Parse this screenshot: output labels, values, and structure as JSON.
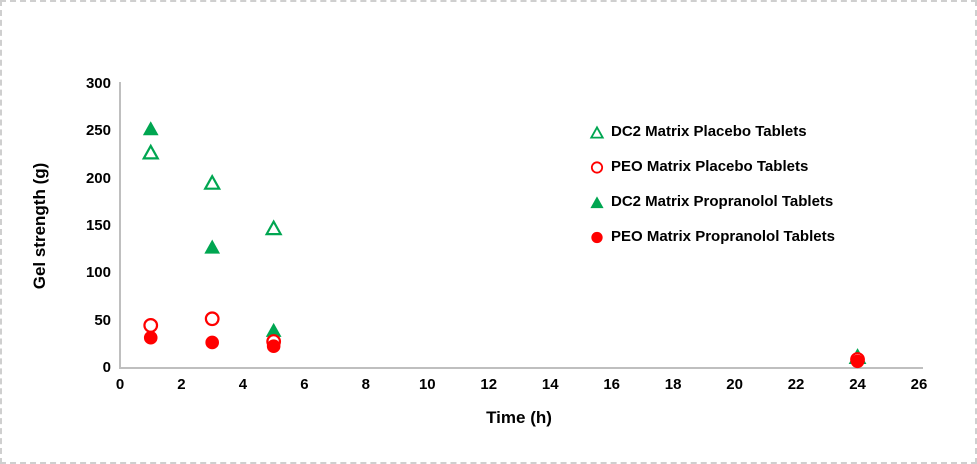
{
  "figure": {
    "background": "#ffffff",
    "border_color": "#cfcfcf"
  },
  "chart_data": {
    "type": "scatter",
    "title": "",
    "xlabel": "Time (h)",
    "ylabel": "Gel strength (g)",
    "xlim": [
      0,
      26
    ],
    "ylim": [
      0,
      300
    ],
    "x_ticks": [
      0,
      2,
      4,
      6,
      8,
      10,
      12,
      14,
      16,
      18,
      20,
      22,
      24,
      26
    ],
    "y_ticks": [
      0,
      50,
      100,
      150,
      200,
      250,
      300
    ],
    "grid": false,
    "axis_color": "#bfbfbf",
    "legend_position": "inside-right",
    "series": [
      {
        "name": "DC2 Matrix Placebo Tablets",
        "marker": "triangle",
        "fill": "open",
        "color": "#00a651",
        "points": [
          [
            1,
            228
          ],
          [
            3,
            196
          ],
          [
            5,
            148
          ],
          [
            24,
            12
          ]
        ]
      },
      {
        "name": "PEO Matrix Placebo Tablets",
        "marker": "circle",
        "fill": "open",
        "color": "#ff0000",
        "points": [
          [
            1,
            45
          ],
          [
            3,
            52
          ],
          [
            5,
            28
          ],
          [
            24,
            9
          ]
        ]
      },
      {
        "name": "DC2 Matrix Propranolol Tablets",
        "marker": "triangle",
        "fill": "solid",
        "color": "#00a651",
        "points": [
          [
            1,
            253
          ],
          [
            3,
            128
          ],
          [
            5,
            40
          ],
          [
            24,
            12
          ]
        ]
      },
      {
        "name": "PEO Matrix Propranolol Tablets",
        "marker": "circle",
        "fill": "solid",
        "color": "#ff0000",
        "points": [
          [
            1,
            32
          ],
          [
            3,
            27
          ],
          [
            5,
            23
          ],
          [
            24,
            7
          ]
        ]
      }
    ]
  }
}
